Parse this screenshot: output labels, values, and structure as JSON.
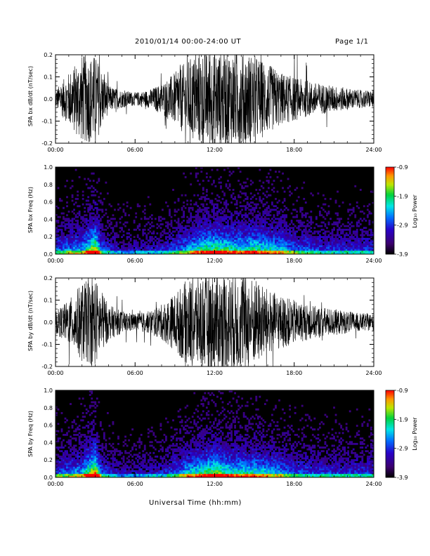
{
  "header": {
    "title": "2010/01/14   00:00-24:00 UT",
    "page": "Page 1/1"
  },
  "footer": {
    "xlabel": "Universal Time (hh:mm)"
  },
  "colorbar": {
    "label": "Log₁₀ Power",
    "ticks": [
      "-0.9",
      "-1.9",
      "-2.9",
      "-3.9"
    ]
  },
  "colors": {
    "trace": "#000000",
    "spectrogram_background": "#000000"
  },
  "chart_data": [
    {
      "type": "line",
      "ylabel": "SPA bx dB/dt (nT/sec)",
      "xlim": [
        "00:00",
        "24:00"
      ],
      "ylim": [
        -0.2,
        0.2
      ],
      "xticks": [
        "00:00",
        "06:00",
        "12:00",
        "18:00",
        "24:00"
      ],
      "yticks": [
        "-0.2",
        "-0.1",
        "0.0",
        "0.1",
        "0.2"
      ],
      "envelope_hours": [
        0,
        1,
        2,
        3,
        4,
        5,
        6,
        7,
        8,
        9,
        10,
        11,
        12,
        13,
        14,
        15,
        16,
        17,
        18,
        19,
        20,
        21,
        22,
        23,
        24
      ],
      "envelope_amplitude": [
        0.04,
        0.12,
        0.2,
        0.2,
        0.06,
        0.04,
        0.03,
        0.04,
        0.07,
        0.12,
        0.18,
        0.22,
        0.22,
        0.22,
        0.22,
        0.2,
        0.16,
        0.12,
        0.1,
        0.08,
        0.07,
        0.06,
        0.05,
        0.04,
        0.04
      ]
    },
    {
      "type": "heatmap",
      "ylabel": "SPA bx Freq (Hz)",
      "xlim": [
        "00:00",
        "24:00"
      ],
      "ylim": [
        0.0,
        1.0
      ],
      "xticks": [
        "00:00",
        "06:00",
        "12:00",
        "18:00",
        "24:00"
      ],
      "yticks": [
        "0.0",
        "0.2",
        "0.4",
        "0.6",
        "0.8",
        "1.0"
      ],
      "zlabel": "Log₁₀ Power",
      "zlim": [
        -3.9,
        -0.9
      ],
      "activity_hours": [
        0,
        2,
        2.7,
        3,
        3.5,
        5,
        8,
        10,
        11,
        12,
        13,
        14,
        15,
        16,
        17,
        18,
        20,
        22,
        24
      ],
      "activity_level": [
        0.35,
        0.45,
        0.7,
        0.8,
        0.35,
        0.2,
        0.25,
        0.45,
        0.6,
        0.65,
        0.6,
        0.55,
        0.6,
        0.55,
        0.5,
        0.4,
        0.3,
        0.3,
        0.3
      ]
    },
    {
      "type": "line",
      "ylabel": "SPA by dB/dt (nT/sec)",
      "xlim": [
        "00:00",
        "24:00"
      ],
      "ylim": [
        -0.2,
        0.2
      ],
      "xticks": [
        "00:00",
        "06:00",
        "12:00",
        "18:00",
        "24:00"
      ],
      "yticks": [
        "-0.2",
        "-0.1",
        "0.0",
        "0.1",
        "0.2"
      ],
      "envelope_hours": [
        0,
        1,
        2,
        3,
        4,
        5,
        6,
        7,
        8,
        9,
        10,
        11,
        12,
        13,
        14,
        15,
        16,
        17,
        18,
        19,
        20,
        21,
        22,
        23,
        24
      ],
      "envelope_amplitude": [
        0.05,
        0.1,
        0.18,
        0.2,
        0.08,
        0.05,
        0.04,
        0.05,
        0.08,
        0.13,
        0.2,
        0.22,
        0.22,
        0.22,
        0.22,
        0.2,
        0.15,
        0.12,
        0.1,
        0.08,
        0.07,
        0.06,
        0.05,
        0.04,
        0.04
      ]
    },
    {
      "type": "heatmap",
      "ylabel": "SPA by Freq (Hz)",
      "xlim": [
        "00:00",
        "24:00"
      ],
      "ylim": [
        0.0,
        1.0
      ],
      "xticks": [
        "00:00",
        "06:00",
        "12:00",
        "18:00",
        "24:00"
      ],
      "yticks": [
        "0.0",
        "0.2",
        "0.4",
        "0.6",
        "0.8",
        "1.0"
      ],
      "zlabel": "Log₁₀ Power",
      "zlim": [
        -3.9,
        -0.9
      ],
      "activity_hours": [
        0,
        2,
        2.7,
        3,
        3.5,
        5,
        8,
        10,
        11,
        12,
        13,
        14,
        15,
        16,
        17,
        18,
        20,
        22,
        24
      ],
      "activity_level": [
        0.35,
        0.45,
        0.75,
        0.85,
        0.35,
        0.2,
        0.25,
        0.5,
        0.6,
        0.7,
        0.6,
        0.55,
        0.55,
        0.5,
        0.45,
        0.35,
        0.3,
        0.3,
        0.3
      ]
    }
  ]
}
